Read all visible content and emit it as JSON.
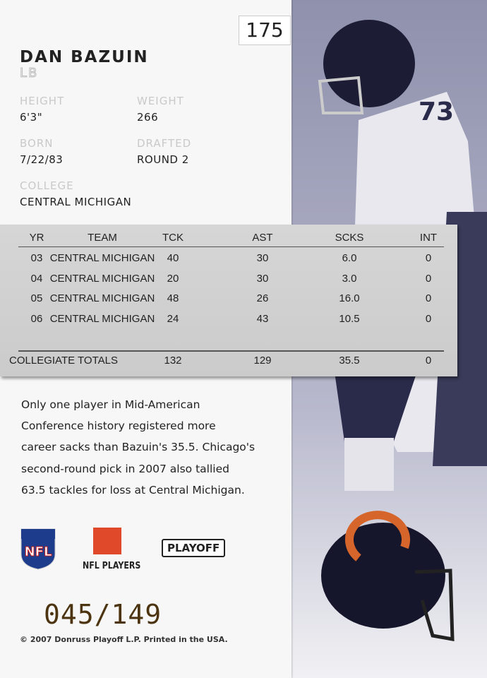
{
  "card": {
    "number": "175",
    "name": "DAN BAZUIN",
    "position": "LB",
    "fields": [
      {
        "label": "HEIGHT",
        "value": "6'3\""
      },
      {
        "label": "WEIGHT",
        "value": "266"
      },
      {
        "label": "BORN",
        "value": "7/22/83"
      },
      {
        "label": "DRAFTED",
        "value": "ROUND 2"
      },
      {
        "label": "COLLEGE",
        "value": "CENTRAL MICHIGAN"
      }
    ],
    "table": {
      "headers": [
        "YR",
        "TEAM",
        "TCK",
        "AST",
        "SCKS",
        "INT"
      ],
      "rows": [
        [
          "03",
          "CENTRAL MICHIGAN",
          "40",
          "30",
          "6.0",
          "0"
        ],
        [
          "04",
          "CENTRAL MICHIGAN",
          "20",
          "30",
          "3.0",
          "0"
        ],
        [
          "05",
          "CENTRAL MICHIGAN",
          "48",
          "26",
          "16.0",
          "0"
        ],
        [
          "06",
          "CENTRAL MICHIGAN",
          "24",
          "43",
          "10.5",
          "0"
        ]
      ],
      "totals": [
        "COLLEGIATE TOTALS",
        "132",
        "129",
        "35.5",
        "0"
      ]
    },
    "blurb": [
      "Only one player in Mid-American",
      "Conference history registered more",
      "career sacks than Bazuin's 35.5. Chicago's",
      "second-round pick in 2007 also tallied",
      "63.5 tackles for loss at Central Michigan."
    ],
    "logos": [
      "NFL",
      "NFL PLAYERS",
      "PLAYOFF"
    ],
    "serial": "045/149",
    "copyright": "© 2007 Donruss Playoff L.P. Printed in the USA."
  }
}
